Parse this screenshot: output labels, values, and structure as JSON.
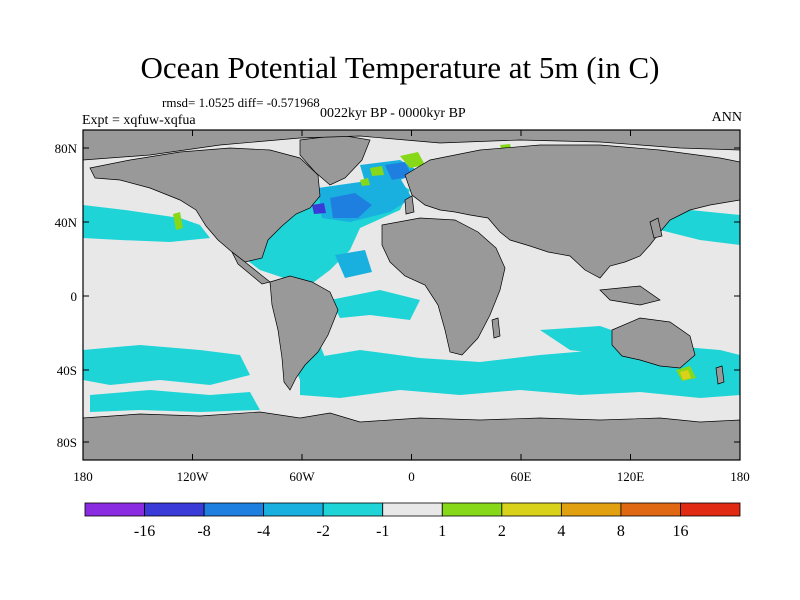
{
  "title": "Ocean Potential Temperature at 5m (in C)",
  "stats": "rmsd= 1.0525 diff= -0.571968",
  "experiment": "Expt = xqfuw-xqfua",
  "period": "0022kyr BP - 0000kyr BP",
  "season": "ANN",
  "axes": {
    "x_ticks": [
      "180",
      "120W",
      "60W",
      "0",
      "60E",
      "120E",
      "180"
    ],
    "y_ticks": [
      "80N",
      "40N",
      "0",
      "40S",
      "80S"
    ]
  },
  "colorbar": {
    "labels": [
      "-16",
      "-8",
      "-4",
      "-2",
      "-1",
      "1",
      "2",
      "4",
      "8",
      "16"
    ],
    "colors": [
      "#8a2be2",
      "#3a3ad8",
      "#1f7fe0",
      "#19b0e0",
      "#1ed4d6",
      "#e8e8e8",
      "#88d81a",
      "#d8d21a",
      "#e0a010",
      "#e06812",
      "#e02a12"
    ]
  },
  "map_colors": {
    "land": "#999999",
    "ocean_neutral": "#e8e8e8",
    "anom_minus1": "#1ed4d6",
    "anom_minus2": "#19b0e0",
    "anom_minus4": "#1f7fe0",
    "anom_minus8": "#3a3ad8",
    "anom_plus1": "#88d81a",
    "anom_plus2": "#d8d21a"
  }
}
